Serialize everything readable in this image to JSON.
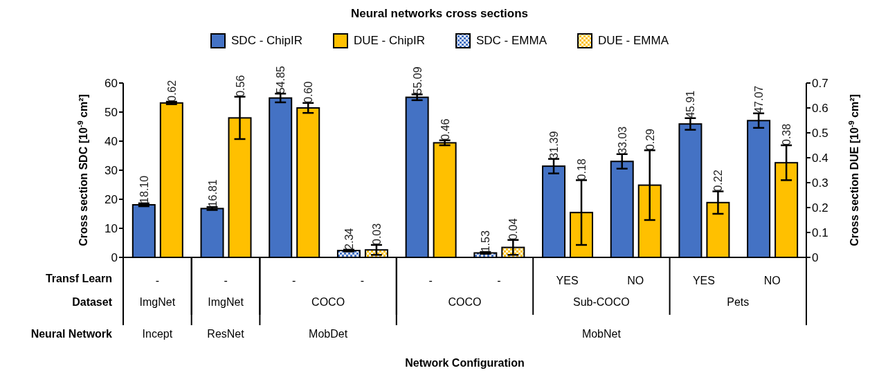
{
  "chart_data": {
    "type": "bar",
    "title": "Neural networks cross sections",
    "ylabel": "Cross section SDC [10$^{-9}$ cm²]",
    "y2label": "Cross section DUE [10$^{-9}$ cm²]",
    "categories": [
      "-",
      "-",
      "-",
      "-",
      "-",
      "-",
      "YES",
      "NO",
      "YES",
      "NO"
    ],
    "annotations": [
      "Transf Learn",
      "Dataset",
      "Neural Network",
      "ImgNet",
      "ImgNet",
      "COCO",
      "COCO",
      "Sub-COCO",
      "Pets",
      "Incept",
      "ResNet",
      "MobDet",
      "MobNet",
      "Network Configuration"
    ],
    "series": [
      {
        "name": "SDC - ChipIR",
        "color": "#4472c4",
        "values": [
          18.1,
          16.81,
          54.85,
          null,
          55.09,
          null,
          31.39,
          33.03,
          45.91,
          47.07
        ],
        "errors": [
          0.5,
          0.5,
          1.5,
          null,
          1,
          null,
          2.5,
          2.5,
          2,
          2.5
        ],
        "value_labels": [
          "18.10",
          "16.81",
          "54.85",
          null,
          "55.09",
          null,
          "31.39",
          "33.03",
          "45.91",
          "47.07"
        ]
      },
      {
        "name": "DUE - ChipIR",
        "color": "#ffc000",
        "axis": "y2",
        "values": [
          0.62,
          0.56,
          0.6,
          null,
          0.46,
          null,
          0.18,
          0.29,
          0.22,
          0.38
        ],
        "errors": [
          0.005,
          0.085,
          0.02,
          null,
          0.01,
          null,
          0.13,
          0.14,
          0.045,
          0.07
        ],
        "value_labels": [
          "0.62",
          "0.56",
          "0.60",
          null,
          "0.46",
          null,
          "0.18",
          "0.29",
          "0.22",
          "0.38"
        ]
      },
      {
        "name": "SDC - EMMA",
        "color": "#4472c4",
        "values": [
          null,
          null,
          null,
          2.34,
          null,
          1.53,
          null,
          null,
          null,
          null
        ],
        "errors": [
          null,
          null,
          null,
          0.3,
          null,
          0.3,
          null,
          null,
          null,
          null
        ],
        "value_labels": [
          null,
          null,
          null,
          "2.34",
          null,
          "1.53",
          null,
          null,
          null,
          null
        ]
      },
      {
        "name": "DUE - EMMA",
        "color": "#ffc000",
        "axis": "y2",
        "values": [
          null,
          null,
          null,
          0.03,
          null,
          0.04,
          null,
          null,
          null,
          null
        ],
        "errors": [
          null,
          null,
          null,
          0.02,
          null,
          0.03,
          null,
          null,
          null,
          null
        ],
        "value_labels": [
          null,
          null,
          null,
          "0.03",
          null,
          "0.04",
          null,
          null,
          null,
          null
        ]
      }
    ],
    "ylim": [
      0,
      60
    ],
    "yticks": [
      0,
      10,
      20,
      30,
      40,
      50,
      60
    ],
    "y2lim": [
      0,
      0.7
    ],
    "y2ticks": [
      0,
      0.1,
      0.2,
      0.3,
      0.4,
      0.5,
      0.6,
      0.7
    ],
    "grid": false,
    "legend": "top"
  }
}
